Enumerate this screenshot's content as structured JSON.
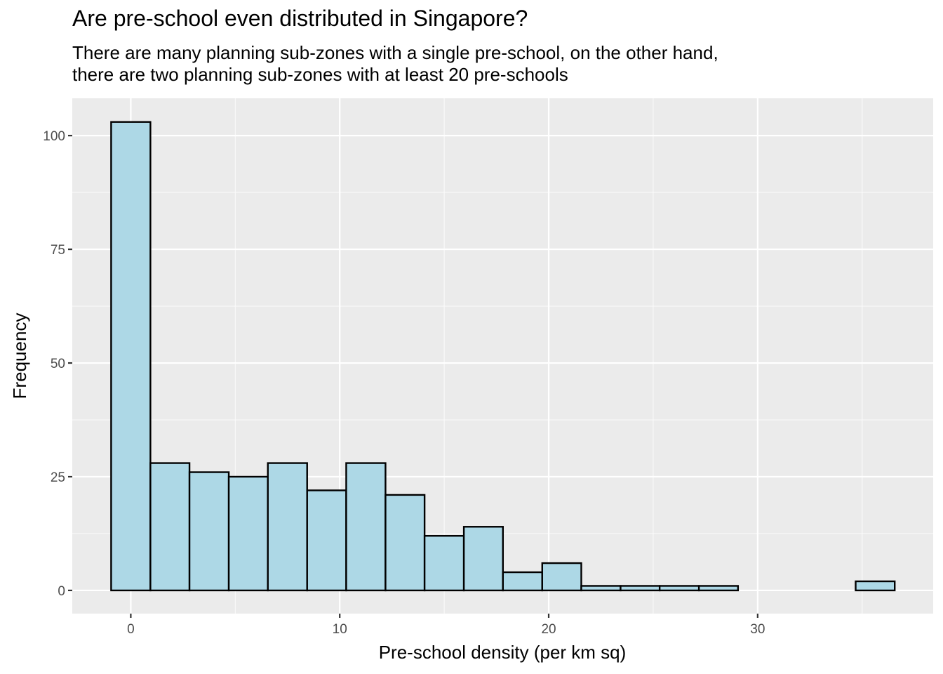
{
  "chart_data": {
    "type": "bar",
    "title": "Are pre-school even distributed in Singapore?",
    "subtitle": [
      "There are many planning sub-zones with a single pre-school, on the other hand,",
      "there are two planning sub-zones with at least 20 pre-schools"
    ],
    "xlabel": "Pre-school density (per km sq)",
    "ylabel": "Frequency",
    "bin_width": 1.875,
    "bins": [
      {
        "x0": -0.94,
        "x1": 0.94,
        "count": 103
      },
      {
        "x0": 0.94,
        "x1": 2.81,
        "count": 28
      },
      {
        "x0": 2.81,
        "x1": 4.69,
        "count": 26
      },
      {
        "x0": 4.69,
        "x1": 6.56,
        "count": 25
      },
      {
        "x0": 6.56,
        "x1": 8.44,
        "count": 28
      },
      {
        "x0": 8.44,
        "x1": 10.31,
        "count": 22
      },
      {
        "x0": 10.31,
        "x1": 12.19,
        "count": 28
      },
      {
        "x0": 12.19,
        "x1": 14.06,
        "count": 21
      },
      {
        "x0": 14.06,
        "x1": 15.94,
        "count": 12
      },
      {
        "x0": 15.94,
        "x1": 17.81,
        "count": 14
      },
      {
        "x0": 17.81,
        "x1": 19.69,
        "count": 4
      },
      {
        "x0": 19.69,
        "x1": 21.56,
        "count": 6
      },
      {
        "x0": 21.56,
        "x1": 23.44,
        "count": 1
      },
      {
        "x0": 23.44,
        "x1": 25.31,
        "count": 1
      },
      {
        "x0": 25.31,
        "x1": 27.19,
        "count": 1
      },
      {
        "x0": 27.19,
        "x1": 29.06,
        "count": 1
      },
      {
        "x0": 29.06,
        "x1": 30.94,
        "count": 0
      },
      {
        "x0": 30.94,
        "x1": 32.81,
        "count": 0
      },
      {
        "x0": 32.81,
        "x1": 34.69,
        "count": 0
      },
      {
        "x0": 34.69,
        "x1": 36.56,
        "count": 2
      }
    ],
    "xlim": [
      -2.8,
      38.4
    ],
    "ylim": [
      -5.1,
      108.2
    ],
    "x_ticks": [
      0,
      10,
      20,
      30
    ],
    "y_ticks": [
      0,
      25,
      50,
      75,
      100
    ],
    "fill_color": "#add8e6",
    "edge_color": "#000000",
    "panel_color": "#ebebeb",
    "grid": true
  }
}
